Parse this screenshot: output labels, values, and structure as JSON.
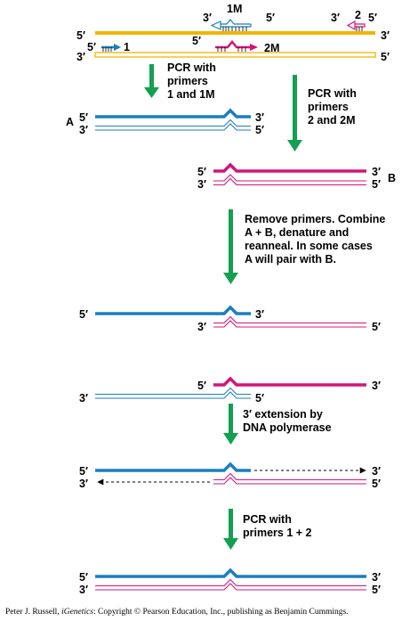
{
  "colors": {
    "wild_type": "#f0b400",
    "fragment_a": "#1b7ec1",
    "fragment_b": "#d4147a",
    "arrow": "#13a050",
    "dashed": "#000000"
  },
  "labels": {
    "five": "5′",
    "three": "3′",
    "primer_1": "1",
    "primer_1m": "1M",
    "primer_2": "2",
    "primer_2m": "2M",
    "product_a": "A",
    "product_b": "B"
  },
  "steps": {
    "pcr_a": [
      "PCR with",
      "primers",
      "1 and 1M"
    ],
    "pcr_b": [
      "PCR with",
      "primers",
      "2 and 2M"
    ],
    "combine": [
      "Remove primers. Combine",
      "A + B, denature and",
      "reanneal. In some cases",
      "A will pair with B."
    ],
    "extension": [
      "3′ extension by",
      "DNA polymerase"
    ],
    "pcr_final": [
      "PCR with",
      "primers 1 + 2"
    ]
  },
  "credit": {
    "prefix": "Peter J. Russell, ",
    "title": "iGenetics",
    "suffix": ": Copyright © Pearson Education, Inc., publishing as Benjamin Cummings."
  }
}
